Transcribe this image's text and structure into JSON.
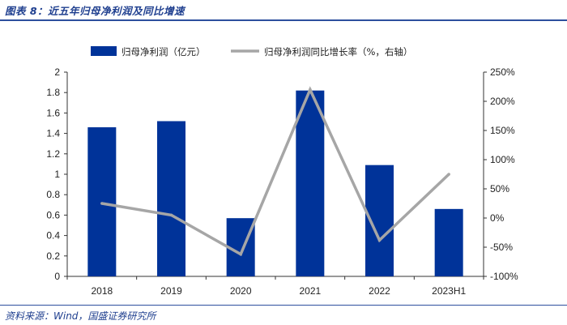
{
  "header": {
    "title": "图表 8：近五年归母净利润及同比增速"
  },
  "footer": {
    "source": "资料来源：Wind，国盛证券研究所"
  },
  "chart_data": {
    "type": "bar",
    "title": "近五年归母净利润及同比增速",
    "categories": [
      "2018",
      "2019",
      "2020",
      "2021",
      "2022",
      "2023H1"
    ],
    "series": [
      {
        "name": "归母净利润（亿元）",
        "type": "bar",
        "axis": "left",
        "values": [
          1.46,
          1.52,
          0.57,
          1.82,
          1.09,
          0.66
        ],
        "color": "#003399"
      },
      {
        "name": "归母净利润同比增长率（%，右轴）",
        "type": "line",
        "axis": "right",
        "values": [
          25,
          5,
          -62,
          220,
          -38,
          75
        ],
        "color": "#a6a6a6"
      }
    ],
    "ylim_left": [
      0,
      2
    ],
    "yticks_left": [
      "0",
      "0.2",
      "0.4",
      "0.6",
      "0.8",
      "1",
      "1.2",
      "1.4",
      "1.6",
      "1.8",
      "2"
    ],
    "ylim_right": [
      -100,
      250
    ],
    "yticks_right": [
      "-100%",
      "-50%",
      "0%",
      "50%",
      "100%",
      "150%",
      "200%",
      "250%"
    ],
    "legend": "top",
    "grid": false
  }
}
